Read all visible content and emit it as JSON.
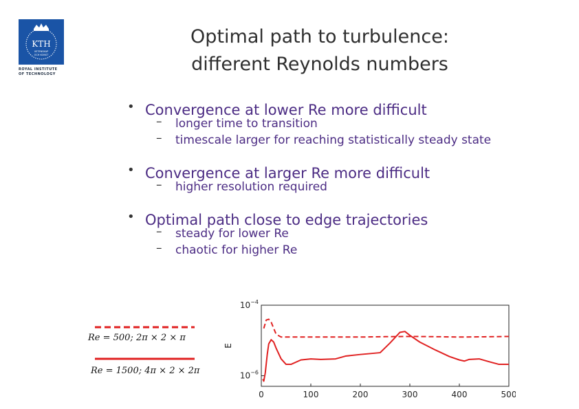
{
  "logo": {
    "text": "KTH",
    "subtext1": "VETENSKAP",
    "subtext2": "OCH KONST",
    "caption_line1": "ROYAL INSTITUTE",
    "caption_line2": "OF TECHNOLOGY",
    "color": "#1a54a6"
  },
  "title": {
    "line1": "Optimal path to turbulence:",
    "line2": "different Reynolds numbers"
  },
  "bullets": [
    {
      "text": "Convergence at lower Re more difficult",
      "subs": [
        "longer time to transition",
        "timescale larger for reaching statistically steady state"
      ]
    },
    {
      "text": "Convergence at larger Re more difficult",
      "subs": [
        "higher resolution required"
      ]
    },
    {
      "text": "Optimal path close to edge trajectories",
      "subs": [
        "steady for lower Re",
        "chaotic for higher Re"
      ]
    }
  ],
  "bullet_symbol": "•",
  "dash_symbol": "–",
  "legend": {
    "entry1": "Re = 500; 2π × 2 × π",
    "entry2": "Re = 1500; 4π × 2 × 2π"
  },
  "chart_data": {
    "type": "line",
    "ylabel": "E",
    "xlabel": "",
    "xlim": [
      0,
      500
    ],
    "ylim": [
      5e-07,
      0.0001
    ],
    "yscale": "log",
    "x_ticks": [
      0,
      100,
      200,
      300,
      400,
      500
    ],
    "y_ticks": [
      {
        "value": 0.0001,
        "base": "10",
        "exp": "−4"
      },
      {
        "value": 1e-06,
        "base": "10",
        "exp": "−6"
      }
    ],
    "color": "#e02020",
    "series": [
      {
        "style": "dashed",
        "x": [
          5,
          10,
          15,
          20,
          25,
          30,
          40,
          60,
          100,
          150,
          200,
          250,
          300,
          350,
          400,
          450,
          500
        ],
        "y": [
          2.2e-05,
          3.8e-05,
          4e-05,
          3.3e-05,
          2.2e-05,
          1.5e-05,
          1.25e-05,
          1.25e-05,
          1.25e-05,
          1.25e-05,
          1.25e-05,
          1.28e-05,
          1.3e-05,
          1.28e-05,
          1.25e-05,
          1.27e-05,
          1.3e-05
        ]
      },
      {
        "style": "solid",
        "x": [
          3,
          5,
          8,
          12,
          15,
          20,
          25,
          30,
          40,
          50,
          60,
          80,
          100,
          120,
          150,
          170,
          200,
          240,
          260,
          280,
          290,
          300,
          320,
          350,
          380,
          400,
          410,
          420,
          440,
          460,
          480,
          500
        ],
        "y": [
          8e-07,
          7e-07,
          1.2e-06,
          4e-06,
          8e-06,
          1.05e-05,
          9e-06,
          6e-06,
          3e-06,
          2.1e-06,
          2.1e-06,
          2.8e-06,
          3e-06,
          2.9e-06,
          3e-06,
          3.6e-06,
          4e-06,
          4.5e-06,
          8.5e-06,
          1.7e-05,
          1.8e-05,
          1.4e-05,
          9e-06,
          5.5e-06,
          3.5e-06,
          2.8e-06,
          2.6e-06,
          2.9e-06,
          3e-06,
          2.5e-06,
          2.1e-06,
          2.1e-06
        ]
      }
    ]
  }
}
